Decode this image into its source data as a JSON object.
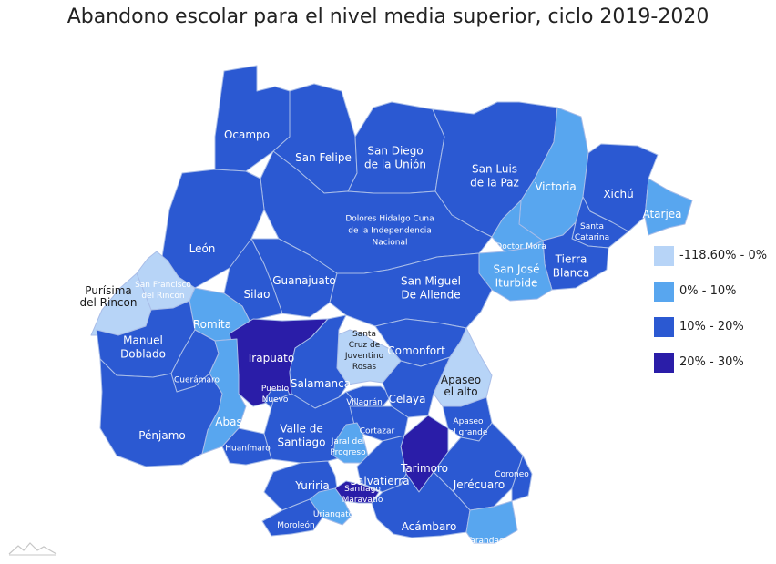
{
  "title": "Abandono escolar para el nivel media superior, ciclo 2019-2020",
  "colors": {
    "c0": "#b7d4f7",
    "c1": "#58a6ef",
    "c2": "#2b59d2",
    "c3": "#2a1da8",
    "border": "#a9bde8"
  },
  "legend": [
    {
      "label": "-118.60% - 0%",
      "color": "#b7d4f7"
    },
    {
      "label": "0% - 10%",
      "color": "#58a6ef"
    },
    {
      "label": "10% - 20%",
      "color": "#2b59d2"
    },
    {
      "label": "20% - 30%",
      "color": "#2a1da8"
    }
  ],
  "municipios": [
    {
      "name": "Ocampo",
      "label": [
        "Ocampo"
      ],
      "class": "10% - 20%"
    },
    {
      "name": "San Felipe",
      "label": [
        "San Felipe"
      ],
      "class": "10% - 20%"
    },
    {
      "name": "San Diego de la Unión",
      "label": [
        "San Diego",
        "de la Unión"
      ],
      "class": "10% - 20%"
    },
    {
      "name": "San Luis de la Paz",
      "label": [
        "San Luis",
        "de la Paz"
      ],
      "class": "10% - 20%"
    },
    {
      "name": "Victoria",
      "label": [
        "Victoria"
      ],
      "class": "0% - 10%"
    },
    {
      "name": "Xichú",
      "label": [
        "Xichú"
      ],
      "class": "10% - 20%"
    },
    {
      "name": "Atarjea",
      "label": [
        "Atarjea"
      ],
      "class": "0% - 10%"
    },
    {
      "name": "Santa Catarina",
      "label": [
        "Santa",
        "Catarina"
      ],
      "class": "10% - 20%"
    },
    {
      "name": "Doctor Mora",
      "label": [
        "Doctor Mora"
      ],
      "class": "0% - 10%"
    },
    {
      "name": "Tierra Blanca",
      "label": [
        "Tierra",
        "Blanca"
      ],
      "class": "10% - 20%"
    },
    {
      "name": "San José Iturbide",
      "label": [
        "San José",
        "Iturbide"
      ],
      "class": "0% - 10%"
    },
    {
      "name": "Dolores Hidalgo Cuna de la Independencia Nacional",
      "label": [
        "Dolores Hidalgo Cuna",
        "de la Independencia",
        "Nacional"
      ],
      "class": "10% - 20%"
    },
    {
      "name": "León",
      "label": [
        "León"
      ],
      "class": "10% - 20%"
    },
    {
      "name": "Guanajuato",
      "label": [
        "Guanajuato"
      ],
      "class": "10% - 20%"
    },
    {
      "name": "Silao",
      "label": [
        "Silao"
      ],
      "class": "10% - 20%"
    },
    {
      "name": "San Miguel De Allende",
      "label": [
        "San Miguel",
        "De Allende"
      ],
      "class": "10% - 20%"
    },
    {
      "name": "San Francisco del Rincón",
      "label": [
        "San Francisco",
        "del Rincón"
      ],
      "class": "-118.60% - 0%"
    },
    {
      "name": "Purísima del Rincon",
      "label": [
        "Purísima",
        "del Rincon"
      ],
      "class": "-118.60% - 0%"
    },
    {
      "name": "Romita",
      "label": [
        "Romita"
      ],
      "class": "0% - 10%"
    },
    {
      "name": "Manuel Doblado",
      "label": [
        "Manuel",
        "Doblado"
      ],
      "class": "10% - 20%"
    },
    {
      "name": "Irapuato",
      "label": [
        "Irapuato"
      ],
      "class": "20% - 30%"
    },
    {
      "name": "Santa Cruz de Juventino Rosas",
      "label": [
        "Santa",
        "Cruz de",
        "Juventino",
        "Rosas"
      ],
      "class": "-118.60% - 0%"
    },
    {
      "name": "Comonfort",
      "label": [
        "Comonfort"
      ],
      "class": "10% - 20%"
    },
    {
      "name": "Apaseo el alto",
      "label": [
        "Apaseo",
        "el alto"
      ],
      "class": "-118.60% - 0%"
    },
    {
      "name": "Cuerámaro",
      "label": [
        "Cuerámaro"
      ],
      "class": "10% - 20%"
    },
    {
      "name": "Salamanca",
      "label": [
        "Salamanca"
      ],
      "class": "10% - 20%"
    },
    {
      "name": "Pueblo Nuevo",
      "label": [
        "Pueblo",
        "Nuevo"
      ],
      "class": "10% - 20%"
    },
    {
      "name": "Villagrán",
      "label": [
        "Villagrán"
      ],
      "class": "10% - 20%"
    },
    {
      "name": "Celaya",
      "label": [
        "Celaya"
      ],
      "class": "10% - 20%"
    },
    {
      "name": "Abasolo",
      "label": [
        "Abasolo"
      ],
      "class": "0% - 10%"
    },
    {
      "name": "Apaseo el grande",
      "label": [
        "Apaseo",
        "el grande"
      ],
      "class": "10% - 20%"
    },
    {
      "name": "Pénjamo",
      "label": [
        "Pénjamo"
      ],
      "class": "10% - 20%"
    },
    {
      "name": "Valle de Santiago",
      "label": [
        "Valle de",
        "Santiago"
      ],
      "class": "10% - 20%"
    },
    {
      "name": "Cortazar",
      "label": [
        "Cortazar"
      ],
      "class": "10% - 20%"
    },
    {
      "name": "Huanímaro",
      "label": [
        "Huanímaro"
      ],
      "class": "10% - 20%"
    },
    {
      "name": "Jaral del Progreso",
      "label": [
        "Jaral del",
        "Progreso"
      ],
      "class": "0% - 10%"
    },
    {
      "name": "Tarimoro",
      "label": [
        "Tarimoro"
      ],
      "class": "20% - 30%"
    },
    {
      "name": "Salvatierra",
      "label": [
        "Salvatierra"
      ],
      "class": "10% - 20%"
    },
    {
      "name": "Jerécuaro",
      "label": [
        "Jerécuaro"
      ],
      "class": "10% - 20%"
    },
    {
      "name": "Coroneo",
      "label": [
        "Coroneo"
      ],
      "class": "10% - 20%"
    },
    {
      "name": "Yuriria",
      "label": [
        "Yuriria"
      ],
      "class": "10% - 20%"
    },
    {
      "name": "Santiago Maravatío",
      "label": [
        "Santiago",
        "Maravatío"
      ],
      "class": "20% - 30%"
    },
    {
      "name": "Uriangato",
      "label": [
        "Uriangato"
      ],
      "class": "0% - 10%"
    },
    {
      "name": "Moroleón",
      "label": [
        "Moroleón"
      ],
      "class": "10% - 20%"
    },
    {
      "name": "Acámbaro",
      "label": [
        "Acámbaro"
      ],
      "class": "10% - 20%"
    },
    {
      "name": "Tarandacuao",
      "label": [
        "Tarandacuao"
      ],
      "class": "0% - 10%"
    }
  ]
}
